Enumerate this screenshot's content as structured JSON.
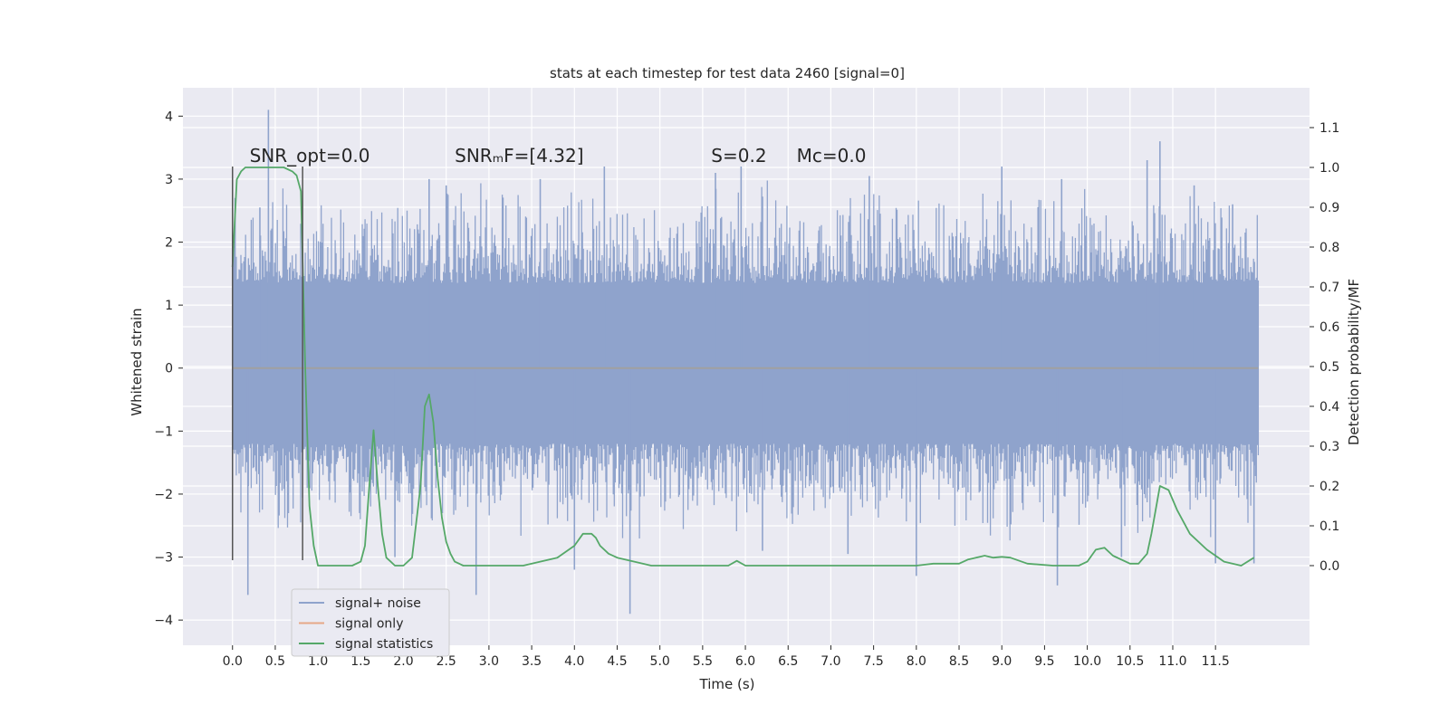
{
  "chart_data": {
    "type": "line",
    "title": "stats at each timestep for test data 2460 [signal=0]",
    "xlabel": "Time (s)",
    "ylabel_left": "Whitened strain",
    "ylabel_right": "Detection probability/MF",
    "xlim": [
      -0.58,
      12.6
    ],
    "ylim_left": [
      -4.4,
      4.45
    ],
    "ylim_right": [
      -0.2,
      1.2
    ],
    "x_ticks": [
      0.0,
      0.5,
      1.0,
      1.5,
      2.0,
      2.5,
      3.0,
      3.5,
      4.0,
      4.5,
      5.0,
      5.5,
      6.0,
      6.5,
      7.0,
      7.5,
      8.0,
      8.5,
      9.0,
      9.5,
      10.0,
      10.5,
      11.0,
      11.5
    ],
    "x_tick_labels": [
      "0.0",
      "0.5",
      "1.0",
      "1.5",
      "2.0",
      "2.5",
      "3.0",
      "3.5",
      "4.0",
      "4.5",
      "5.0",
      "5.5",
      "6.0",
      "6.5",
      "7.0",
      "7.5",
      "8.0",
      "8.5",
      "9.0",
      "9.5",
      "10.0",
      "10.5",
      "11.0",
      "11.5"
    ],
    "y_left_ticks": [
      4,
      3,
      2,
      1,
      0,
      -1,
      -2,
      -3,
      -4
    ],
    "y_left_tick_labels": [
      "4",
      "3",
      "2",
      "1",
      "0",
      "−1",
      "−2",
      "−3",
      "−4"
    ],
    "y_right_ticks": [
      1.1,
      1.0,
      0.9,
      0.8,
      0.7,
      0.6,
      0.5,
      0.4,
      0.3,
      0.2,
      0.1,
      0.0
    ],
    "y_right_tick_labels": [
      "1.1",
      "1.0",
      "0.9",
      "0.8",
      "0.7",
      "0.6",
      "0.5",
      "0.4",
      "0.3",
      "0.2",
      "0.1",
      "0.0"
    ],
    "grid": true,
    "legend_position": "lower-left",
    "annotations": [
      {
        "text": "SNR_opt=0.0",
        "x": 0.2,
        "y": 3.3
      },
      {
        "text": "SNRₘF=[4.32]",
        "x": 2.6,
        "y": 3.3
      },
      {
        "text": "S=0.2",
        "x": 5.6,
        "y": 3.3
      },
      {
        "text": "Mᴄ=0.0",
        "x": 6.6,
        "y": 3.3
      }
    ],
    "vlines": [
      {
        "x": 0.0,
        "ymin": -3.05,
        "ymax": 3.2
      },
      {
        "x": 0.82,
        "ymin": -3.05,
        "ymax": 3.2
      }
    ],
    "series": [
      {
        "name": "signal+ noise",
        "axis": "left",
        "color": "#8fa3cc",
        "x_range": [
          0.0,
          12.0
        ],
        "band": [
          -1.8,
          1.95
        ],
        "peaks": [
          {
            "x": 0.42,
            "y": 4.1
          },
          {
            "x": 0.03,
            "y": 2.7
          },
          {
            "x": 0.32,
            "y": 2.55
          },
          {
            "x": 2.3,
            "y": 3.0
          },
          {
            "x": 2.5,
            "y": 2.9
          },
          {
            "x": 3.6,
            "y": 3.0
          },
          {
            "x": 4.35,
            "y": 3.2
          },
          {
            "x": 5.65,
            "y": 3.1
          },
          {
            "x": 5.95,
            "y": 3.2
          },
          {
            "x": 7.45,
            "y": 3.05
          },
          {
            "x": 9.0,
            "y": 3.2
          },
          {
            "x": 9.7,
            "y": 3.0
          },
          {
            "x": 10.7,
            "y": 3.3
          },
          {
            "x": 10.85,
            "y": 3.6
          },
          {
            "x": 11.25,
            "y": 2.9
          },
          {
            "x": 11.7,
            "y": 2.6
          },
          {
            "x": 2.85,
            "y": -3.6
          },
          {
            "x": 0.18,
            "y": -3.6
          },
          {
            "x": 4.65,
            "y": -3.9
          },
          {
            "x": 4.0,
            "y": -3.2
          },
          {
            "x": 8.0,
            "y": -3.3
          },
          {
            "x": 9.65,
            "y": -3.45
          },
          {
            "x": 1.9,
            "y": -3.0
          },
          {
            "x": 6.2,
            "y": -2.9
          },
          {
            "x": 11.5,
            "y": -3.1
          },
          {
            "x": 11.95,
            "y": -3.1
          },
          {
            "x": 7.2,
            "y": -2.95
          },
          {
            "x": 10.4,
            "y": -3.0
          }
        ]
      },
      {
        "name": "signal only",
        "axis": "left",
        "color": "#dd8452",
        "x": [
          0.0,
          12.0
        ],
        "y": [
          0.0,
          0.0
        ]
      },
      {
        "name": "signal statistics",
        "axis": "right",
        "color": "#55a868",
        "x": [
          0.0,
          0.05,
          0.1,
          0.15,
          0.2,
          0.3,
          0.4,
          0.5,
          0.6,
          0.7,
          0.75,
          0.8,
          0.85,
          0.9,
          0.95,
          1.0,
          1.1,
          1.2,
          1.3,
          1.4,
          1.5,
          1.55,
          1.6,
          1.65,
          1.7,
          1.75,
          1.8,
          1.85,
          1.9,
          1.95,
          2.0,
          2.1,
          2.2,
          2.25,
          2.3,
          2.35,
          2.4,
          2.45,
          2.5,
          2.55,
          2.6,
          2.7,
          2.8,
          2.9,
          3.0,
          3.2,
          3.4,
          3.6,
          3.8,
          4.0,
          4.1,
          4.2,
          4.25,
          4.3,
          4.4,
          4.5,
          4.7,
          4.9,
          5.1,
          5.5,
          5.8,
          5.9,
          6.0,
          6.1,
          6.5,
          7.0,
          7.5,
          8.0,
          8.2,
          8.3,
          8.5,
          8.6,
          8.8,
          8.9,
          9.0,
          9.1,
          9.3,
          9.6,
          9.9,
          10.0,
          10.1,
          10.2,
          10.3,
          10.5,
          10.6,
          10.7,
          10.75,
          10.85,
          10.95,
          11.05,
          11.2,
          11.4,
          11.6,
          11.8,
          11.95
        ],
        "y": [
          0.75,
          0.97,
          0.99,
          1.0,
          1.0,
          1.0,
          1.0,
          1.0,
          1.0,
          0.99,
          0.98,
          0.94,
          0.5,
          0.15,
          0.05,
          0.0,
          0.0,
          0.0,
          0.0,
          0.0,
          0.01,
          0.05,
          0.2,
          0.34,
          0.2,
          0.08,
          0.02,
          0.01,
          0.0,
          0.0,
          0.0,
          0.02,
          0.2,
          0.4,
          0.43,
          0.36,
          0.22,
          0.12,
          0.06,
          0.03,
          0.01,
          0.0,
          0.0,
          0.0,
          0.0,
          0.0,
          0.0,
          0.01,
          0.02,
          0.05,
          0.08,
          0.08,
          0.07,
          0.05,
          0.03,
          0.02,
          0.01,
          0.0,
          0.0,
          0.0,
          0.0,
          0.012,
          0.0,
          0.0,
          0.0,
          0.0,
          0.0,
          0.0,
          0.005,
          0.005,
          0.005,
          0.015,
          0.025,
          0.02,
          0.022,
          0.02,
          0.005,
          0.0,
          0.0,
          0.01,
          0.04,
          0.045,
          0.025,
          0.005,
          0.005,
          0.03,
          0.08,
          0.2,
          0.19,
          0.14,
          0.08,
          0.04,
          0.01,
          0.0,
          0.02
        ]
      }
    ]
  }
}
